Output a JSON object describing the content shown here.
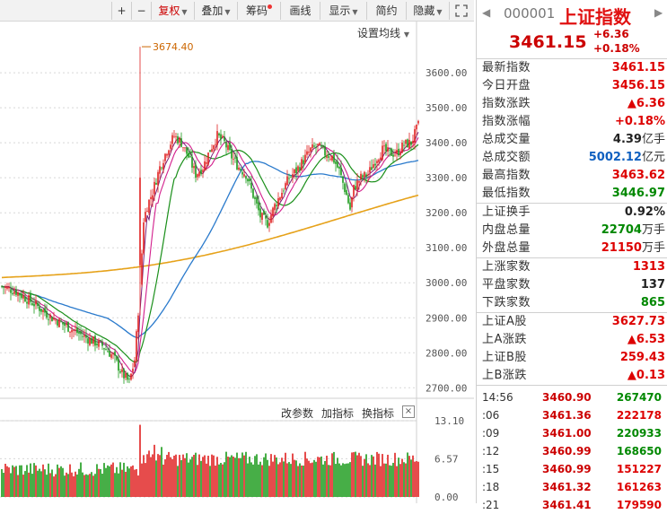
{
  "toolbar": {
    "zoom_in": "+",
    "zoom_out": "−",
    "fuquan": "复权",
    "overlay": "叠加",
    "chips": "筹码",
    "draw": "画线",
    "display": "显示",
    "simple": "简约",
    "hide": "隐藏",
    "expand_icon": "expand-icon"
  },
  "chart": {
    "setting_label": "设置均线",
    "peak_label": "3674.40",
    "sub_buttons": [
      "改参数",
      "加指标",
      "换指标"
    ],
    "close_label": "×"
  },
  "chart_data": [
    {
      "type": "candlestick",
      "title": "",
      "y_ticks": [
        "3600.00",
        "3500.00",
        "3400.00",
        "3300.00",
        "3200.00",
        "3100.00",
        "3000.00",
        "2900.00",
        "2800.00",
        "2700.00"
      ],
      "ylim": [
        2670,
        3690
      ],
      "annotations": [
        "3674.40"
      ],
      "ma_colors": {
        "ma5": "#7a1f7a",
        "ma10": "#d21e8c",
        "ma20": "#1a8f1a",
        "ma60": "#2a7acc",
        "ma250": "#e6a21a"
      }
    },
    {
      "type": "bar",
      "title": "",
      "y_ticks": [
        "13.10",
        "6.57",
        "0.00"
      ],
      "ylim": [
        0,
        13.1
      ]
    }
  ],
  "panel": {
    "code": "000001",
    "name": "上证指数",
    "price": "3461.15",
    "change": "+6.36",
    "change_pct": "+0.18%",
    "stats1": [
      {
        "label": "最新指数",
        "value": "3461.15",
        "unit": "",
        "color": "red"
      },
      {
        "label": "今日开盘",
        "value": "3456.15",
        "unit": "",
        "color": "red"
      },
      {
        "label": "指数涨跌",
        "value": "▲6.36",
        "unit": "",
        "color": "red"
      },
      {
        "label": "指数涨幅",
        "value": "+0.18%",
        "unit": "",
        "color": "red"
      },
      {
        "label": "总成交量",
        "value": "4.39",
        "unit": "亿手",
        "color": "black"
      },
      {
        "label": "总成交额",
        "value": "5002.12",
        "unit": "亿元",
        "color": "blue"
      },
      {
        "label": "最高指数",
        "value": "3463.62",
        "unit": "",
        "color": "red"
      },
      {
        "label": "最低指数",
        "value": "3446.97",
        "unit": "",
        "color": "green"
      }
    ],
    "stats2": [
      {
        "label": "上证换手",
        "value": "0.92%",
        "unit": "",
        "color": "black"
      },
      {
        "label": "内盘总量",
        "value": "22704",
        "unit": "万手",
        "color": "green"
      },
      {
        "label": "外盘总量",
        "value": "21150",
        "unit": "万手",
        "color": "red"
      }
    ],
    "stats3": [
      {
        "label": "上涨家数",
        "value": "1313",
        "unit": "",
        "color": "red"
      },
      {
        "label": "平盘家数",
        "value": "137",
        "unit": "",
        "color": "black"
      },
      {
        "label": "下跌家数",
        "value": "865",
        "unit": "",
        "color": "green"
      }
    ],
    "stats4": [
      {
        "label": "上证A股",
        "value": "3627.73",
        "unit": "",
        "color": "red"
      },
      {
        "label": "上A涨跌",
        "value": "▲6.53",
        "unit": "",
        "color": "red"
      },
      {
        "label": "上证B股",
        "value": "259.43",
        "unit": "",
        "color": "red"
      },
      {
        "label": "上B涨跌",
        "value": "▲0.13",
        "unit": "",
        "color": "red"
      }
    ],
    "ticks": [
      {
        "time": "14:56",
        "price": "3460.90",
        "vol": "267470",
        "color": "green"
      },
      {
        "time": ":06",
        "price": "3461.36",
        "vol": "222178",
        "color": "red"
      },
      {
        "time": ":09",
        "price": "3461.00",
        "vol": "220933",
        "color": "green"
      },
      {
        "time": ":12",
        "price": "3460.99",
        "vol": "168650",
        "color": "green"
      },
      {
        "time": ":15",
        "price": "3460.99",
        "vol": "151227",
        "color": "red"
      },
      {
        "time": ":18",
        "price": "3461.32",
        "vol": "161263",
        "color": "red"
      },
      {
        "time": ":21",
        "price": "3461.41",
        "vol": "179590",
        "color": "red"
      }
    ]
  }
}
